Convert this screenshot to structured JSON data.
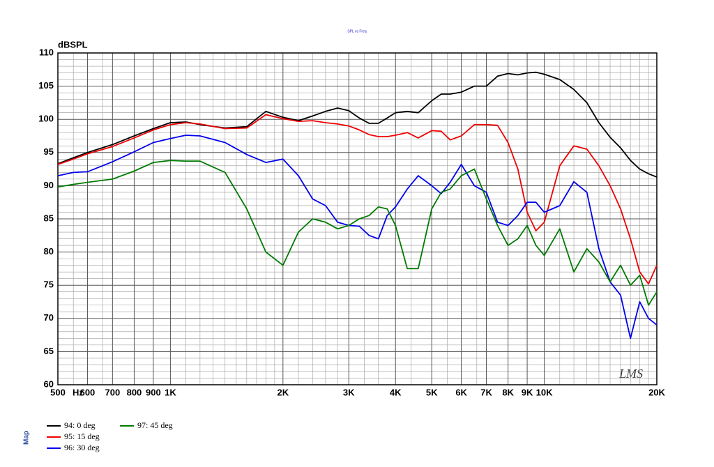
{
  "chart_data": {
    "type": "line",
    "title": "SPL vs Freq",
    "y_label": "dBSPL",
    "x_label": "Hz",
    "side_label": "Map",
    "watermark": "LMS",
    "x_scale": "log",
    "grid": true,
    "minor_grid": true,
    "xlim": [
      500,
      20000
    ],
    "ylim": [
      60,
      110
    ],
    "yticks": [
      60,
      65,
      70,
      75,
      80,
      85,
      90,
      95,
      100,
      105,
      110
    ],
    "xticks": [
      500,
      600,
      700,
      800,
      900,
      {
        "value": 1000,
        "label": "1K"
      },
      {
        "value": 2000,
        "label": "2K"
      },
      {
        "value": 3000,
        "label": "3K"
      },
      {
        "value": 4000,
        "label": "4K"
      },
      {
        "value": 5000,
        "label": "5K"
      },
      {
        "value": 6000,
        "label": "6K"
      },
      {
        "value": 7000,
        "label": "7K"
      },
      {
        "value": 8000,
        "label": "8K"
      },
      {
        "value": 9000,
        "label": "9K"
      },
      {
        "value": 10000,
        "label": "10K"
      },
      {
        "value": 20000,
        "label": "20K"
      }
    ],
    "x": [
      500,
      550,
      600,
      700,
      800,
      900,
      1000,
      1100,
      1200,
      1400,
      1600,
      1800,
      2000,
      2200,
      2400,
      2600,
      2800,
      3000,
      3200,
      3400,
      3600,
      3800,
      4000,
      4300,
      4600,
      5000,
      5300,
      5600,
      6000,
      6500,
      7000,
      7500,
      8000,
      8500,
      9000,
      9500,
      10000,
      11000,
      12000,
      13000,
      14000,
      15000,
      16000,
      17000,
      18000,
      19000,
      20000
    ],
    "series": [
      {
        "name": "94: 0 deg",
        "color": "#000000",
        "values": [
          93.3,
          94.2,
          95.0,
          96.2,
          97.5,
          98.6,
          99.5,
          99.6,
          99.2,
          98.7,
          98.9,
          101.2,
          100.3,
          99.8,
          100.5,
          101.2,
          101.7,
          101.3,
          100.2,
          99.4,
          99.4,
          100.2,
          101.0,
          101.2,
          101.0,
          102.8,
          103.8,
          103.8,
          104.1,
          105.0,
          105.0,
          106.5,
          106.9,
          106.7,
          107.0,
          107.1,
          106.8,
          106.0,
          104.5,
          102.5,
          99.5,
          97.3,
          95.7,
          93.8,
          92.5,
          91.8,
          91.3
        ]
      },
      {
        "name": "95: 15 deg",
        "color": "#ee0000",
        "values": [
          93.2,
          94.0,
          94.8,
          95.9,
          97.2,
          98.4,
          99.2,
          99.5,
          99.3,
          98.6,
          98.7,
          100.7,
          100.1,
          99.7,
          99.8,
          99.5,
          99.3,
          99.0,
          98.4,
          97.7,
          97.4,
          97.4,
          97.6,
          98.0,
          97.2,
          98.3,
          98.2,
          96.9,
          97.5,
          99.2,
          99.2,
          99.1,
          96.5,
          92.5,
          86.0,
          83.2,
          84.5,
          93.0,
          96.0,
          95.5,
          93.0,
          90.0,
          86.5,
          82.0,
          77.0,
          75.2,
          78.0
        ]
      },
      {
        "name": "96: 30 deg",
        "color": "#0000ee",
        "values": [
          91.5,
          92.0,
          92.1,
          93.6,
          95.1,
          96.5,
          97.1,
          97.6,
          97.5,
          96.5,
          94.7,
          93.5,
          94.0,
          91.5,
          88.0,
          87.0,
          84.5,
          84.0,
          83.9,
          82.5,
          82.0,
          85.5,
          86.8,
          89.5,
          91.5,
          90.0,
          88.8,
          90.5,
          93.2,
          90.0,
          89.0,
          84.5,
          84.0,
          85.5,
          87.5,
          87.5,
          86.0,
          87.0,
          90.6,
          89.0,
          80.5,
          75.5,
          73.5,
          67.0,
          72.5,
          70.0,
          69.0
        ]
      },
      {
        "name": "97: 45 deg",
        "color": "#007a00",
        "values": [
          89.8,
          90.2,
          90.5,
          91.0,
          92.2,
          93.5,
          93.8,
          93.7,
          93.7,
          92.0,
          86.5,
          80.0,
          78.0,
          83.0,
          85.0,
          84.5,
          83.5,
          84.0,
          85.0,
          85.5,
          86.8,
          86.5,
          84.0,
          77.5,
          77.5,
          86.5,
          89.0,
          89.5,
          91.5,
          92.5,
          88.0,
          84.0,
          81.0,
          82.0,
          84.0,
          81.0,
          79.5,
          83.5,
          77.0,
          80.5,
          78.5,
          75.5,
          78.0,
          75.0,
          76.5,
          72.0,
          74.0
        ]
      }
    ]
  }
}
